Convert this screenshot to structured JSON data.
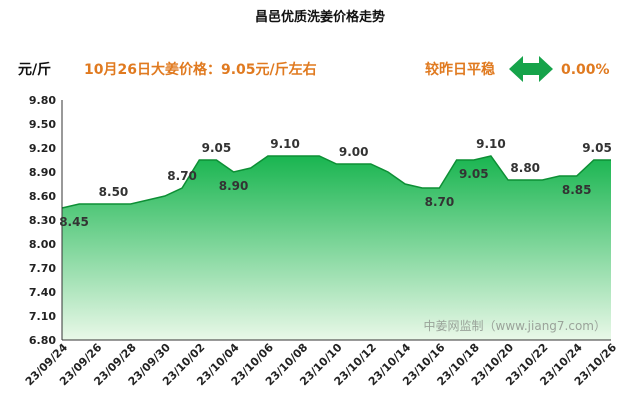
{
  "chart_data": {
    "type": "area",
    "title": "昌邑优质洗姜价格走势",
    "ylabel": "元/斤",
    "ylim": [
      6.8,
      9.8
    ],
    "yticks": [
      6.8,
      7.1,
      7.4,
      7.7,
      8.0,
      8.3,
      8.6,
      8.9,
      9.2,
      9.5,
      9.8
    ],
    "xticks": [
      "23/09/24",
      "23/09/26",
      "23/09/28",
      "23/09/30",
      "23/10/02",
      "23/10/04",
      "23/10/06",
      "23/10/08",
      "23/10/10",
      "23/10/12",
      "23/10/14",
      "23/10/16",
      "23/10/18",
      "23/10/20",
      "23/10/22",
      "23/10/24",
      "23/10/26"
    ],
    "x": [
      "23/09/24",
      "23/09/25",
      "23/09/26",
      "23/09/27",
      "23/09/28",
      "23/09/29",
      "23/09/30",
      "23/10/01",
      "23/10/02",
      "23/10/03",
      "23/10/04",
      "23/10/05",
      "23/10/06",
      "23/10/07",
      "23/10/08",
      "23/10/09",
      "23/10/10",
      "23/10/11",
      "23/10/12",
      "23/10/13",
      "23/10/14",
      "23/10/15",
      "23/10/16",
      "23/10/17",
      "23/10/18",
      "23/10/19",
      "23/10/20",
      "23/10/21",
      "23/10/22",
      "23/10/23",
      "23/10/24",
      "23/10/25",
      "23/10/26"
    ],
    "values": [
      8.45,
      8.5,
      8.5,
      8.5,
      8.5,
      8.55,
      8.6,
      8.7,
      9.05,
      9.05,
      8.9,
      8.95,
      9.1,
      9.1,
      9.1,
      9.1,
      9.0,
      9.0,
      9.0,
      8.9,
      8.75,
      8.7,
      8.7,
      9.05,
      9.05,
      9.1,
      8.8,
      8.8,
      8.8,
      8.85,
      8.85,
      9.05,
      9.05
    ],
    "data_labels": [
      {
        "x": "23/09/24",
        "text": "8.45"
      },
      {
        "x": "23/09/27",
        "text": "8.50"
      },
      {
        "x": "23/10/01",
        "text": "8.70"
      },
      {
        "x": "23/10/03",
        "text": "9.05"
      },
      {
        "x": "23/10/04",
        "text": "8.90"
      },
      {
        "x": "23/10/07",
        "text": "9.10"
      },
      {
        "x": "23/10/11",
        "text": "9.00"
      },
      {
        "x": "23/10/16",
        "text": "8.70"
      },
      {
        "x": "23/10/18",
        "text": "9.05"
      },
      {
        "x": "23/10/19",
        "text": "9.10"
      },
      {
        "x": "23/10/21",
        "text": "8.80"
      },
      {
        "x": "23/10/24",
        "text": "8.85"
      },
      {
        "x": "23/10/26",
        "text": "9.05"
      }
    ],
    "grid": false
  },
  "info": {
    "price_text": "10月26日大姜价格：9.05元/斤左右",
    "compare_text": "较昨日平稳",
    "change_text": "0.00%"
  },
  "watermark": "中姜网监制（www.jiang7.com）",
  "colors": {
    "accent_text": "#e07a20",
    "area_top": "#19b550",
    "area_bottom": "#e9f8e8",
    "line": "#0d8f35",
    "arrow": "#16a34a"
  }
}
